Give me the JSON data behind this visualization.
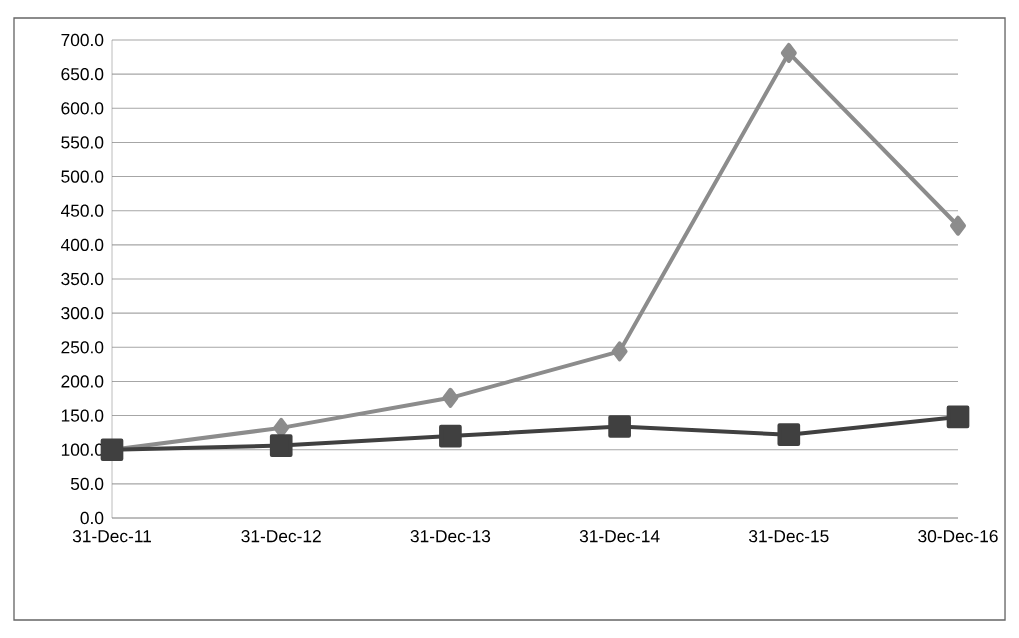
{
  "chart_data": {
    "type": "line",
    "categories": [
      "31-Dec-11",
      "31-Dec-12",
      "31-Dec-13",
      "31-Dec-14",
      "31-Dec-15",
      "30-Dec-16"
    ],
    "series": [
      {
        "color": "#8c8c8c",
        "marker": "diamond",
        "values": [
          100,
          132,
          176,
          244,
          681,
          428
        ]
      },
      {
        "color": "#404040",
        "marker": "square",
        "values": [
          100,
          106,
          120,
          134,
          122,
          148
        ]
      }
    ],
    "ylim": [
      0,
      700
    ],
    "yticks": [
      {
        "value": 0,
        "label": "0.0"
      },
      {
        "value": 50,
        "label": "50.0"
      },
      {
        "value": 100,
        "label": "100.0"
      },
      {
        "value": 150,
        "label": "150.0"
      },
      {
        "value": 200,
        "label": "200.0"
      },
      {
        "value": 250,
        "label": "250.0"
      },
      {
        "value": 300,
        "label": "300.0"
      },
      {
        "value": 350,
        "label": "350.0"
      },
      {
        "value": 400,
        "label": "400.0"
      },
      {
        "value": 450,
        "label": "450.0"
      },
      {
        "value": 500,
        "label": "500.0"
      },
      {
        "value": 550,
        "label": "550.0"
      },
      {
        "value": 600,
        "label": "600.0"
      },
      {
        "value": 650,
        "label": "650.0"
      },
      {
        "value": 700,
        "label": "700.0"
      }
    ],
    "grid": "y",
    "line_style": "solid"
  }
}
